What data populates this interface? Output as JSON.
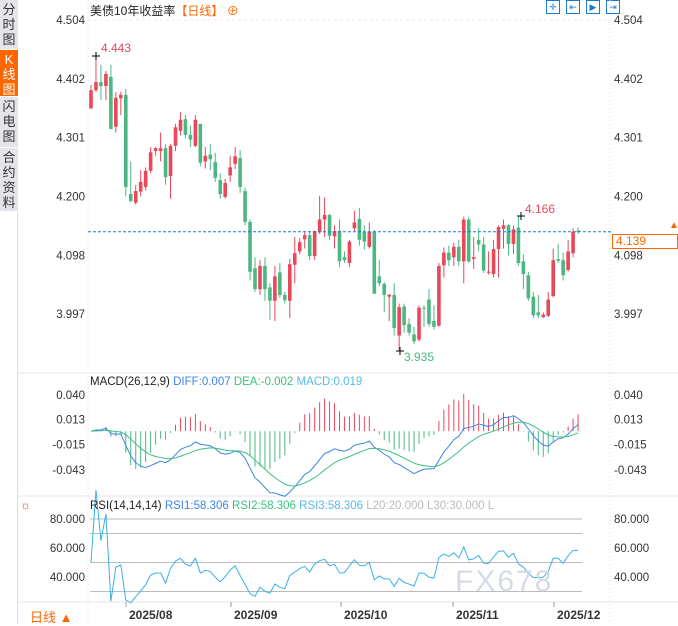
{
  "sidebar": {
    "tabs": [
      {
        "label": "分时图"
      },
      {
        "label": "K线图",
        "active": true
      },
      {
        "label": "闪电图"
      },
      {
        "label": "合约资料"
      }
    ]
  },
  "header": {
    "title": "美债10年收益率",
    "period": "【日线】",
    "add_icon": "plus-circle-icon",
    "tool_icons": [
      "crosshair-icon",
      "range-icon",
      "play-icon",
      "exit-icon"
    ]
  },
  "colors": {
    "up": "#e8485a",
    "down": "#4cb782",
    "diff": "#3a86e8",
    "dea": "#3cc080",
    "macd": "#5ab8e8",
    "rsi": "#3ab0e8",
    "accent": "#ff6600",
    "price_line": "#1a7ad8"
  },
  "chart_data": {
    "type": "candlestick",
    "price_axis": {
      "ticks": [
        "4.504",
        "4.402",
        "4.301",
        "4.200",
        "4.098",
        "3.997"
      ],
      "ylim": [
        3.9,
        4.504
      ]
    },
    "current_price": "4.139",
    "annotations": {
      "high": "4.443",
      "high_ref": "4.166",
      "low": "3.935"
    },
    "x_ticks": [
      "2025/08",
      "2025/09",
      "2025/10",
      "2025/11",
      "2025/12"
    ],
    "ohlc": [
      [
        4.352,
        4.392,
        4.35,
        4.383
      ],
      [
        4.383,
        4.443,
        4.38,
        4.397
      ],
      [
        4.397,
        4.427,
        4.366,
        4.39
      ],
      [
        4.39,
        4.416,
        4.366,
        4.411
      ],
      [
        4.406,
        4.427,
        4.316,
        4.316
      ],
      [
        4.32,
        4.38,
        4.31,
        4.37
      ],
      [
        4.369,
        4.38,
        4.34,
        4.375
      ],
      [
        4.375,
        4.385,
        4.2,
        4.216
      ],
      [
        4.204,
        4.26,
        4.19,
        4.192
      ],
      [
        4.189,
        4.22,
        4.186,
        4.209
      ],
      [
        4.208,
        4.245,
        4.2,
        4.225
      ],
      [
        4.216,
        4.25,
        4.21,
        4.244
      ],
      [
        4.244,
        4.285,
        4.24,
        4.276
      ],
      [
        4.278,
        4.285,
        4.27,
        4.283
      ],
      [
        4.278,
        4.31,
        4.26,
        4.283
      ],
      [
        4.283,
        4.29,
        4.22,
        4.233
      ],
      [
        4.235,
        4.29,
        4.196,
        4.287
      ],
      [
        4.287,
        4.325,
        4.278,
        4.319
      ],
      [
        4.313,
        4.345,
        4.305,
        4.332
      ],
      [
        4.333,
        4.34,
        4.3,
        4.306
      ],
      [
        4.306,
        4.322,
        4.285,
        4.298
      ],
      [
        4.287,
        4.34,
        4.285,
        4.332
      ],
      [
        4.325,
        4.32,
        4.252,
        4.258
      ],
      [
        4.26,
        4.285,
        4.248,
        4.27
      ],
      [
        4.272,
        4.29,
        4.245,
        4.264
      ],
      [
        4.259,
        4.275,
        4.225,
        4.232
      ],
      [
        4.228,
        4.24,
        4.196,
        4.204
      ],
      [
        4.199,
        4.23,
        4.196,
        4.223
      ],
      [
        4.236,
        4.27,
        4.225,
        4.25
      ],
      [
        4.256,
        4.285,
        4.247,
        4.269
      ],
      [
        4.266,
        4.28,
        4.206,
        4.216
      ],
      [
        4.209,
        4.215,
        4.15,
        4.156
      ],
      [
        4.156,
        4.16,
        4.055,
        4.07
      ],
      [
        4.076,
        4.095,
        4.035,
        4.04
      ],
      [
        4.04,
        4.09,
        4.03,
        4.08
      ],
      [
        4.08,
        4.095,
        4.02,
        4.04
      ],
      [
        4.043,
        4.05,
        3.987,
        4.02
      ],
      [
        4.02,
        4.08,
        3.985,
        4.062
      ],
      [
        4.069,
        4.085,
        4.025,
        4.03
      ],
      [
        4.03,
        4.035,
        4.015,
        4.021
      ],
      [
        4.02,
        4.092,
        3.99,
        4.083
      ],
      [
        4.082,
        4.13,
        4.05,
        4.102
      ],
      [
        4.105,
        4.128,
        4.1,
        4.121
      ],
      [
        4.126,
        4.14,
        4.11,
        4.133
      ],
      [
        4.133,
        4.14,
        4.09,
        4.097
      ],
      [
        4.097,
        4.141,
        4.09,
        4.14
      ],
      [
        4.138,
        4.201,
        4.135,
        4.16
      ],
      [
        4.16,
        4.198,
        4.13,
        4.168
      ],
      [
        4.168,
        4.17,
        4.125,
        4.132
      ],
      [
        4.131,
        4.15,
        4.11,
        4.14
      ],
      [
        4.14,
        4.16,
        4.078,
        4.088
      ],
      [
        4.095,
        4.105,
        4.085,
        4.09
      ],
      [
        4.085,
        4.125,
        4.078,
        4.122
      ],
      [
        4.145,
        4.175,
        4.14,
        4.155
      ],
      [
        4.161,
        4.18,
        4.115,
        4.125
      ],
      [
        4.139,
        4.15,
        4.108,
        4.122
      ],
      [
        4.113,
        4.155,
        4.11,
        4.139
      ],
      [
        4.139,
        4.142,
        4.032,
        4.032
      ],
      [
        4.062,
        4.09,
        4.045,
        4.05
      ],
      [
        4.049,
        4.052,
        4.0,
        4.03
      ],
      [
        4.027,
        4.032,
        3.985,
        4.03
      ],
      [
        4.03,
        4.05,
        3.96,
        3.973
      ],
      [
        3.96,
        4.015,
        3.935,
        4.009
      ],
      [
        4.01,
        4.015,
        3.965,
        3.978
      ],
      [
        3.98,
        3.99,
        3.96,
        3.965
      ],
      [
        3.962,
        3.975,
        3.945,
        3.95
      ],
      [
        3.953,
        4.012,
        3.95,
        4.008
      ],
      [
        4.008,
        4.012,
        3.975,
        4.006
      ],
      [
        4.022,
        4.04,
        3.975,
        3.98
      ],
      [
        3.985,
        4.012,
        3.97,
        3.975
      ],
      [
        3.977,
        4.085,
        3.975,
        4.08
      ],
      [
        4.081,
        4.112,
        4.06,
        4.103
      ],
      [
        4.103,
        4.115,
        4.08,
        4.09
      ],
      [
        4.095,
        4.12,
        4.08,
        4.113
      ],
      [
        4.113,
        4.125,
        4.08,
        4.088
      ],
      [
        4.088,
        4.165,
        4.05,
        4.16
      ],
      [
        4.16,
        4.165,
        4.085,
        4.088
      ],
      [
        4.092,
        4.13,
        4.075,
        4.095
      ],
      [
        4.125,
        4.145,
        4.105,
        4.117
      ],
      [
        4.117,
        4.13,
        4.068,
        4.072
      ],
      [
        4.07,
        4.105,
        4.065,
        4.07
      ],
      [
        4.066,
        4.125,
        4.06,
        4.109
      ],
      [
        4.109,
        4.15,
        4.06,
        4.147
      ],
      [
        4.144,
        4.16,
        4.11,
        4.15
      ],
      [
        4.15,
        4.152,
        4.098,
        4.118
      ],
      [
        4.118,
        4.15,
        4.1,
        4.143
      ],
      [
        4.146,
        4.166,
        4.08,
        4.085
      ],
      [
        4.088,
        4.1,
        4.04,
        4.066
      ],
      [
        4.064,
        4.07,
        4.02,
        4.024
      ],
      [
        4.027,
        4.035,
        3.99,
        3.995
      ],
      [
        4.0,
        4.03,
        3.99,
        3.995
      ],
      [
        3.992,
        4.0,
        3.99,
        3.996
      ],
      [
        3.994,
        4.035,
        3.992,
        4.022
      ],
      [
        4.028,
        4.11,
        4.026,
        4.09
      ],
      [
        4.092,
        4.118,
        4.085,
        4.089
      ],
      [
        4.09,
        4.103,
        4.055,
        4.064
      ],
      [
        4.073,
        4.125,
        4.07,
        4.105
      ],
      [
        4.102,
        4.145,
        4.095,
        4.139
      ],
      [
        4.141,
        4.146,
        4.135,
        4.139
      ]
    ],
    "macd": {
      "label": "MACD(26,12,9)",
      "diff": "DIFF:0.007",
      "dea": "DEA:-0.002",
      "macd": "MACD:0.019",
      "ticks": [
        "0.040",
        "0.013",
        "-0.015",
        "-0.043"
      ],
      "ylim": [
        -0.062,
        0.05
      ]
    },
    "rsi": {
      "label": "RSI(14,14,14)",
      "rsi1": "RSI1:58.306",
      "rsi2": "RSI2:58.306",
      "rsi3": "RSI3:58.306",
      "l20": "L20:20.000",
      "l30": "L30:30.000",
      "l": "L",
      "ticks": [
        "80.000",
        "60.000",
        "40.000"
      ],
      "levels": [
        80,
        70,
        50,
        30
      ]
    }
  },
  "footer": {
    "period": "日线 ▲",
    "watermark": "FX678"
  }
}
